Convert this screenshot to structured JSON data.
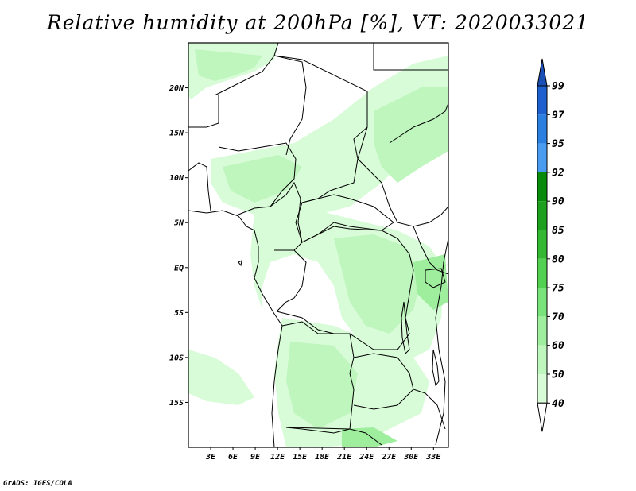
{
  "title": "Relative humidity at 200hPa [%], VT: 2020033021",
  "credit": "GrADS: IGES/COLA",
  "map": {
    "lat_labels": [
      "20N",
      "15N",
      "10N",
      "5N",
      "EQ",
      "5S",
      "10S",
      "15S"
    ],
    "lat_values": [
      20,
      15,
      10,
      5,
      0,
      -5,
      -10,
      -15
    ],
    "lon_labels": [
      "3E",
      "6E",
      "9E",
      "12E",
      "15E",
      "18E",
      "21E",
      "24E",
      "27E",
      "30E",
      "33E"
    ],
    "lon_values": [
      3,
      6,
      9,
      12,
      15,
      18,
      21,
      24,
      27,
      30,
      33
    ],
    "lon_range": [
      0,
      35
    ],
    "lat_range": [
      -20,
      25
    ]
  },
  "colorbar": {
    "levels": [
      "99",
      "97",
      "95",
      "92",
      "90",
      "85",
      "80",
      "75",
      "70",
      "60",
      "50",
      "40"
    ],
    "colors": [
      "#1e5fd0",
      "#2a7fe0",
      "#4a9cf0",
      "#0a8a0a",
      "#1ea01e",
      "#34b834",
      "#52d052",
      "#7ae27a",
      "#9eee9e",
      "#beF6be",
      "#d8fbd8",
      "#eefeee"
    ],
    "top_color": "#1a4fb8",
    "bottom_color": "#ffffff"
  }
}
